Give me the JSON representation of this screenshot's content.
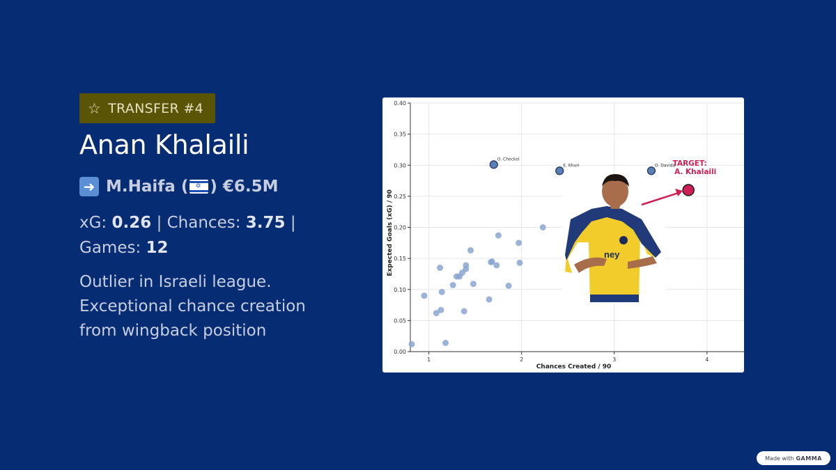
{
  "badge": {
    "icon": "star-icon",
    "label": "TRANSFER #4"
  },
  "player": {
    "name": "Anan Khalaili"
  },
  "transfer": {
    "icon": "right-arrow-icon",
    "club": "M.Haifa (",
    "flag": "israel-flag-icon",
    "close": ")",
    "fee": "€6.5M"
  },
  "stats": {
    "xg_label": "xG:",
    "xg_value": "0.26",
    "sep1": "|",
    "chances_label": "Chances:",
    "chances_value": "3.75",
    "sep2": "|",
    "games_label": "Games:",
    "games_value": "12"
  },
  "description": "Outlier in Israeli league. Exceptional chance creation from wingback position",
  "footer": {
    "made_with": "Made with",
    "brand": "GAMMA"
  },
  "colors": {
    "background": "#062c73",
    "badge": "#5a5406",
    "scatter_point": "#8aa6d0",
    "labeled_point": "#5a7fb8",
    "target": "#d01f56"
  },
  "chart_data": {
    "type": "scatter",
    "xlabel": "Chances Created / 90",
    "ylabel": "Expected Goals (xG) / 90",
    "xlim": [
      0.8,
      4.4
    ],
    "ylim": [
      0,
      0.4
    ],
    "x_ticks": [
      "1",
      "2",
      "3",
      "4"
    ],
    "y_ticks": [
      "0.00",
      "0.05",
      "0.10",
      "0.15",
      "0.20",
      "0.25",
      "0.30",
      "0.35",
      "0.40"
    ],
    "grid": true,
    "points": [
      {
        "x": 0.78,
        "y": 0.012
      },
      {
        "x": 0.95,
        "y": 0.09
      },
      {
        "x": 1.08,
        "y": 0.062
      },
      {
        "x": 1.12,
        "y": 0.135
      },
      {
        "x": 1.13,
        "y": 0.067
      },
      {
        "x": 1.14,
        "y": 0.096
      },
      {
        "x": 1.18,
        "y": 0.014
      },
      {
        "x": 1.26,
        "y": 0.107
      },
      {
        "x": 1.3,
        "y": 0.121
      },
      {
        "x": 1.33,
        "y": 0.121
      },
      {
        "x": 1.36,
        "y": 0.127
      },
      {
        "x": 1.38,
        "y": 0.065
      },
      {
        "x": 1.4,
        "y": 0.133
      },
      {
        "x": 1.4,
        "y": 0.139
      },
      {
        "x": 1.45,
        "y": 0.163
      },
      {
        "x": 1.48,
        "y": 0.109
      },
      {
        "x": 1.65,
        "y": 0.084
      },
      {
        "x": 1.67,
        "y": 0.144
      },
      {
        "x": 1.68,
        "y": 0.145
      },
      {
        "x": 1.73,
        "y": 0.139
      },
      {
        "x": 1.75,
        "y": 0.187
      },
      {
        "x": 1.86,
        "y": 0.106
      },
      {
        "x": 1.97,
        "y": 0.175
      },
      {
        "x": 1.98,
        "y": 0.143
      },
      {
        "x": 2.23,
        "y": 0.2
      }
    ],
    "labeled_points": [
      {
        "label": "O. Checkol",
        "x": 1.7,
        "y": 0.301
      },
      {
        "label": "E. Khuri",
        "x": 2.41,
        "y": 0.291
      },
      {
        "label": "O. Davida",
        "x": 3.4,
        "y": 0.291
      }
    ],
    "target": {
      "label_line1": "TARGET:",
      "label_line2": "A. Khalaili",
      "x": 3.8,
      "y": 0.26
    }
  }
}
